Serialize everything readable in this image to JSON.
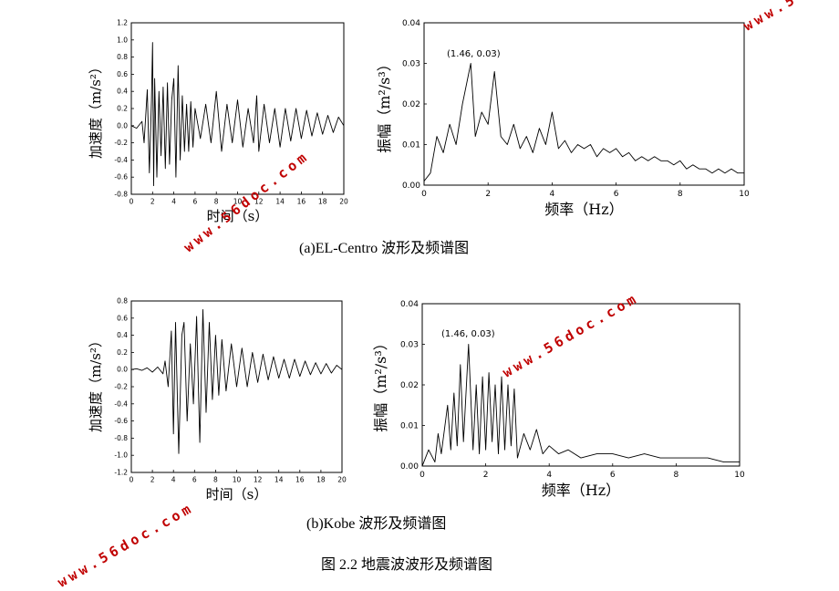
{
  "figure_caption": "图 2.2 地震波波形及频谱图",
  "subcaptions": {
    "a": "(a)EL-Centro 波形及频谱图",
    "b": "(b)Kobe 波形及频谱图"
  },
  "watermark": "www.56doc.com",
  "colors": {
    "line": "#000000",
    "watermark": "#c00000"
  },
  "chart_data": [
    {
      "id": "elcentro-waveform",
      "type": "line",
      "xlabel": "时间（s）",
      "ylabel": "加速度（m/s²）",
      "xlim": [
        0,
        20
      ],
      "ylim": [
        -0.8,
        1.2
      ],
      "xticks": [
        "0",
        "2",
        "4",
        "6",
        "8",
        "10",
        "12",
        "14",
        "16",
        "18",
        "20"
      ],
      "yticks": [
        "-0.8",
        "-0.6",
        "-0.4",
        "-0.2",
        "0.0",
        "0.2",
        "0.4",
        "0.6",
        "0.8",
        "1.0",
        "1.2"
      ],
      "x": [
        0,
        0.5,
        1,
        1.2,
        1.5,
        1.7,
        1.9,
        2.0,
        2.1,
        2.2,
        2.4,
        2.6,
        2.8,
        3.0,
        3.2,
        3.4,
        3.6,
        3.8,
        4.0,
        4.2,
        4.4,
        4.6,
        4.8,
        5.0,
        5.2,
        5.4,
        5.6,
        5.8,
        6.0,
        6.5,
        7.0,
        7.5,
        8.0,
        8.5,
        9.0,
        9.5,
        10.0,
        10.5,
        11.0,
        11.5,
        11.8,
        12.0,
        12.5,
        13.0,
        13.5,
        14.0,
        14.5,
        15.0,
        15.5,
        16.0,
        16.5,
        17.0,
        17.5,
        18.0,
        18.5,
        19.0,
        19.5,
        20.0
      ],
      "y": [
        0,
        -0.03,
        0.05,
        -0.2,
        0.42,
        -0.55,
        0.3,
        0.97,
        -0.7,
        0.55,
        -0.6,
        0.4,
        -0.35,
        0.45,
        -0.5,
        0.5,
        -0.45,
        0.3,
        0.55,
        -0.6,
        0.7,
        -0.4,
        0.35,
        -0.3,
        0.25,
        -0.3,
        0.28,
        -0.25,
        0.2,
        -0.15,
        0.25,
        -0.2,
        0.4,
        -0.3,
        0.25,
        -0.2,
        0.3,
        -0.25,
        0.2,
        -0.2,
        0.35,
        -0.3,
        0.25,
        -0.2,
        0.2,
        -0.25,
        0.2,
        -0.18,
        0.2,
        -0.15,
        0.18,
        -0.12,
        0.15,
        -0.1,
        0.12,
        -0.08,
        0.1,
        0
      ]
    },
    {
      "id": "elcentro-spectrum",
      "type": "line",
      "xlabel": "频率（Hz）",
      "ylabel": "振幅（m²/s³）",
      "xlim": [
        0,
        10
      ],
      "ylim": [
        0,
        0.04
      ],
      "xticks": [
        "0",
        "2",
        "4",
        "6",
        "8",
        "10"
      ],
      "yticks": [
        "0.00",
        "0.01",
        "0.02",
        "0.03",
        "0.04"
      ],
      "annotation": {
        "text": "(1.46, 0.03)",
        "x": 1.46,
        "y": 0.03
      },
      "x": [
        0,
        0.2,
        0.4,
        0.6,
        0.8,
        1.0,
        1.2,
        1.46,
        1.6,
        1.8,
        2.0,
        2.2,
        2.4,
        2.6,
        2.8,
        3.0,
        3.2,
        3.4,
        3.6,
        3.8,
        4.0,
        4.2,
        4.4,
        4.6,
        4.8,
        5.0,
        5.2,
        5.4,
        5.6,
        5.8,
        6.0,
        6.2,
        6.4,
        6.6,
        6.8,
        7.0,
        7.2,
        7.4,
        7.6,
        7.8,
        8.0,
        8.2,
        8.4,
        8.6,
        8.8,
        9.0,
        9.2,
        9.4,
        9.6,
        9.8,
        10.0
      ],
      "y": [
        0.001,
        0.003,
        0.012,
        0.008,
        0.015,
        0.01,
        0.02,
        0.03,
        0.012,
        0.018,
        0.015,
        0.028,
        0.012,
        0.01,
        0.015,
        0.009,
        0.012,
        0.008,
        0.014,
        0.01,
        0.018,
        0.009,
        0.011,
        0.008,
        0.01,
        0.009,
        0.01,
        0.007,
        0.009,
        0.008,
        0.009,
        0.007,
        0.008,
        0.006,
        0.007,
        0.006,
        0.007,
        0.006,
        0.006,
        0.005,
        0.006,
        0.004,
        0.005,
        0.004,
        0.004,
        0.003,
        0.004,
        0.003,
        0.004,
        0.003,
        0.003
      ]
    },
    {
      "id": "kobe-waveform",
      "type": "line",
      "xlabel": "时间（s）",
      "ylabel": "加速度（m/s²）",
      "xlim": [
        0,
        20
      ],
      "ylim": [
        -1.2,
        0.8
      ],
      "xticks": [
        "0",
        "2",
        "4",
        "6",
        "8",
        "10",
        "12",
        "14",
        "16",
        "18",
        "20"
      ],
      "yticks": [
        "-1.2",
        "-1.0",
        "-0.8",
        "-0.6",
        "-0.4",
        "-0.2",
        "0.0",
        "0.2",
        "0.4",
        "0.6",
        "0.8"
      ],
      "x": [
        0,
        0.5,
        1.0,
        1.5,
        2.0,
        2.5,
        3.0,
        3.2,
        3.5,
        3.8,
        4.0,
        4.2,
        4.5,
        4.8,
        5.0,
        5.3,
        5.6,
        5.9,
        6.2,
        6.5,
        6.8,
        7.1,
        7.4,
        7.7,
        8.0,
        8.3,
        8.6,
        9.0,
        9.5,
        10.0,
        10.5,
        11.0,
        11.5,
        12.0,
        12.5,
        13.0,
        13.5,
        14.0,
        14.5,
        15.0,
        15.5,
        16.0,
        16.5,
        17.0,
        17.5,
        18.0,
        18.5,
        19.0,
        19.5,
        20.0
      ],
      "y": [
        0,
        0.01,
        -0.01,
        0.02,
        -0.03,
        0.03,
        -0.05,
        0.1,
        -0.2,
        0.45,
        -0.75,
        0.55,
        -0.98,
        0.4,
        0.55,
        -0.6,
        0.3,
        -0.4,
        0.62,
        -0.85,
        0.7,
        -0.5,
        0.55,
        -0.35,
        0.4,
        -0.3,
        0.35,
        -0.25,
        0.3,
        -0.2,
        0.25,
        -0.2,
        0.2,
        -0.15,
        0.18,
        -0.12,
        0.15,
        -0.1,
        0.12,
        -0.1,
        0.12,
        -0.08,
        0.1,
        -0.06,
        0.08,
        -0.05,
        0.07,
        -0.04,
        0.05,
        0
      ]
    },
    {
      "id": "kobe-spectrum",
      "type": "line",
      "xlabel": "频率（Hz）",
      "ylabel": "振幅（m²/s³）",
      "xlim": [
        0,
        10
      ],
      "ylim": [
        0,
        0.04
      ],
      "xticks": [
        "0",
        "2",
        "4",
        "6",
        "8",
        "10"
      ],
      "yticks": [
        "0.00",
        "0.01",
        "0.02",
        "0.03",
        "0.04"
      ],
      "annotation": {
        "text": "(1.46, 0.03)",
        "x": 1.46,
        "y": 0.03
      },
      "x": [
        0,
        0.2,
        0.4,
        0.5,
        0.6,
        0.8,
        0.9,
        1.0,
        1.1,
        1.2,
        1.3,
        1.46,
        1.6,
        1.7,
        1.8,
        1.9,
        2.0,
        2.1,
        2.2,
        2.3,
        2.4,
        2.5,
        2.6,
        2.7,
        2.8,
        2.9,
        3.0,
        3.2,
        3.4,
        3.6,
        3.8,
        4.0,
        4.3,
        4.6,
        5.0,
        5.5,
        6.0,
        6.5,
        7.0,
        7.5,
        8.0,
        8.5,
        9.0,
        9.5,
        10.0
      ],
      "y": [
        0,
        0.004,
        0.001,
        0.008,
        0.003,
        0.015,
        0.004,
        0.018,
        0.005,
        0.025,
        0.006,
        0.03,
        0.004,
        0.02,
        0.003,
        0.022,
        0.004,
        0.023,
        0.006,
        0.02,
        0.003,
        0.022,
        0.004,
        0.02,
        0.005,
        0.019,
        0.002,
        0.008,
        0.004,
        0.009,
        0.003,
        0.005,
        0.003,
        0.004,
        0.002,
        0.003,
        0.003,
        0.002,
        0.003,
        0.002,
        0.002,
        0.002,
        0.002,
        0.001,
        0.001
      ]
    }
  ]
}
